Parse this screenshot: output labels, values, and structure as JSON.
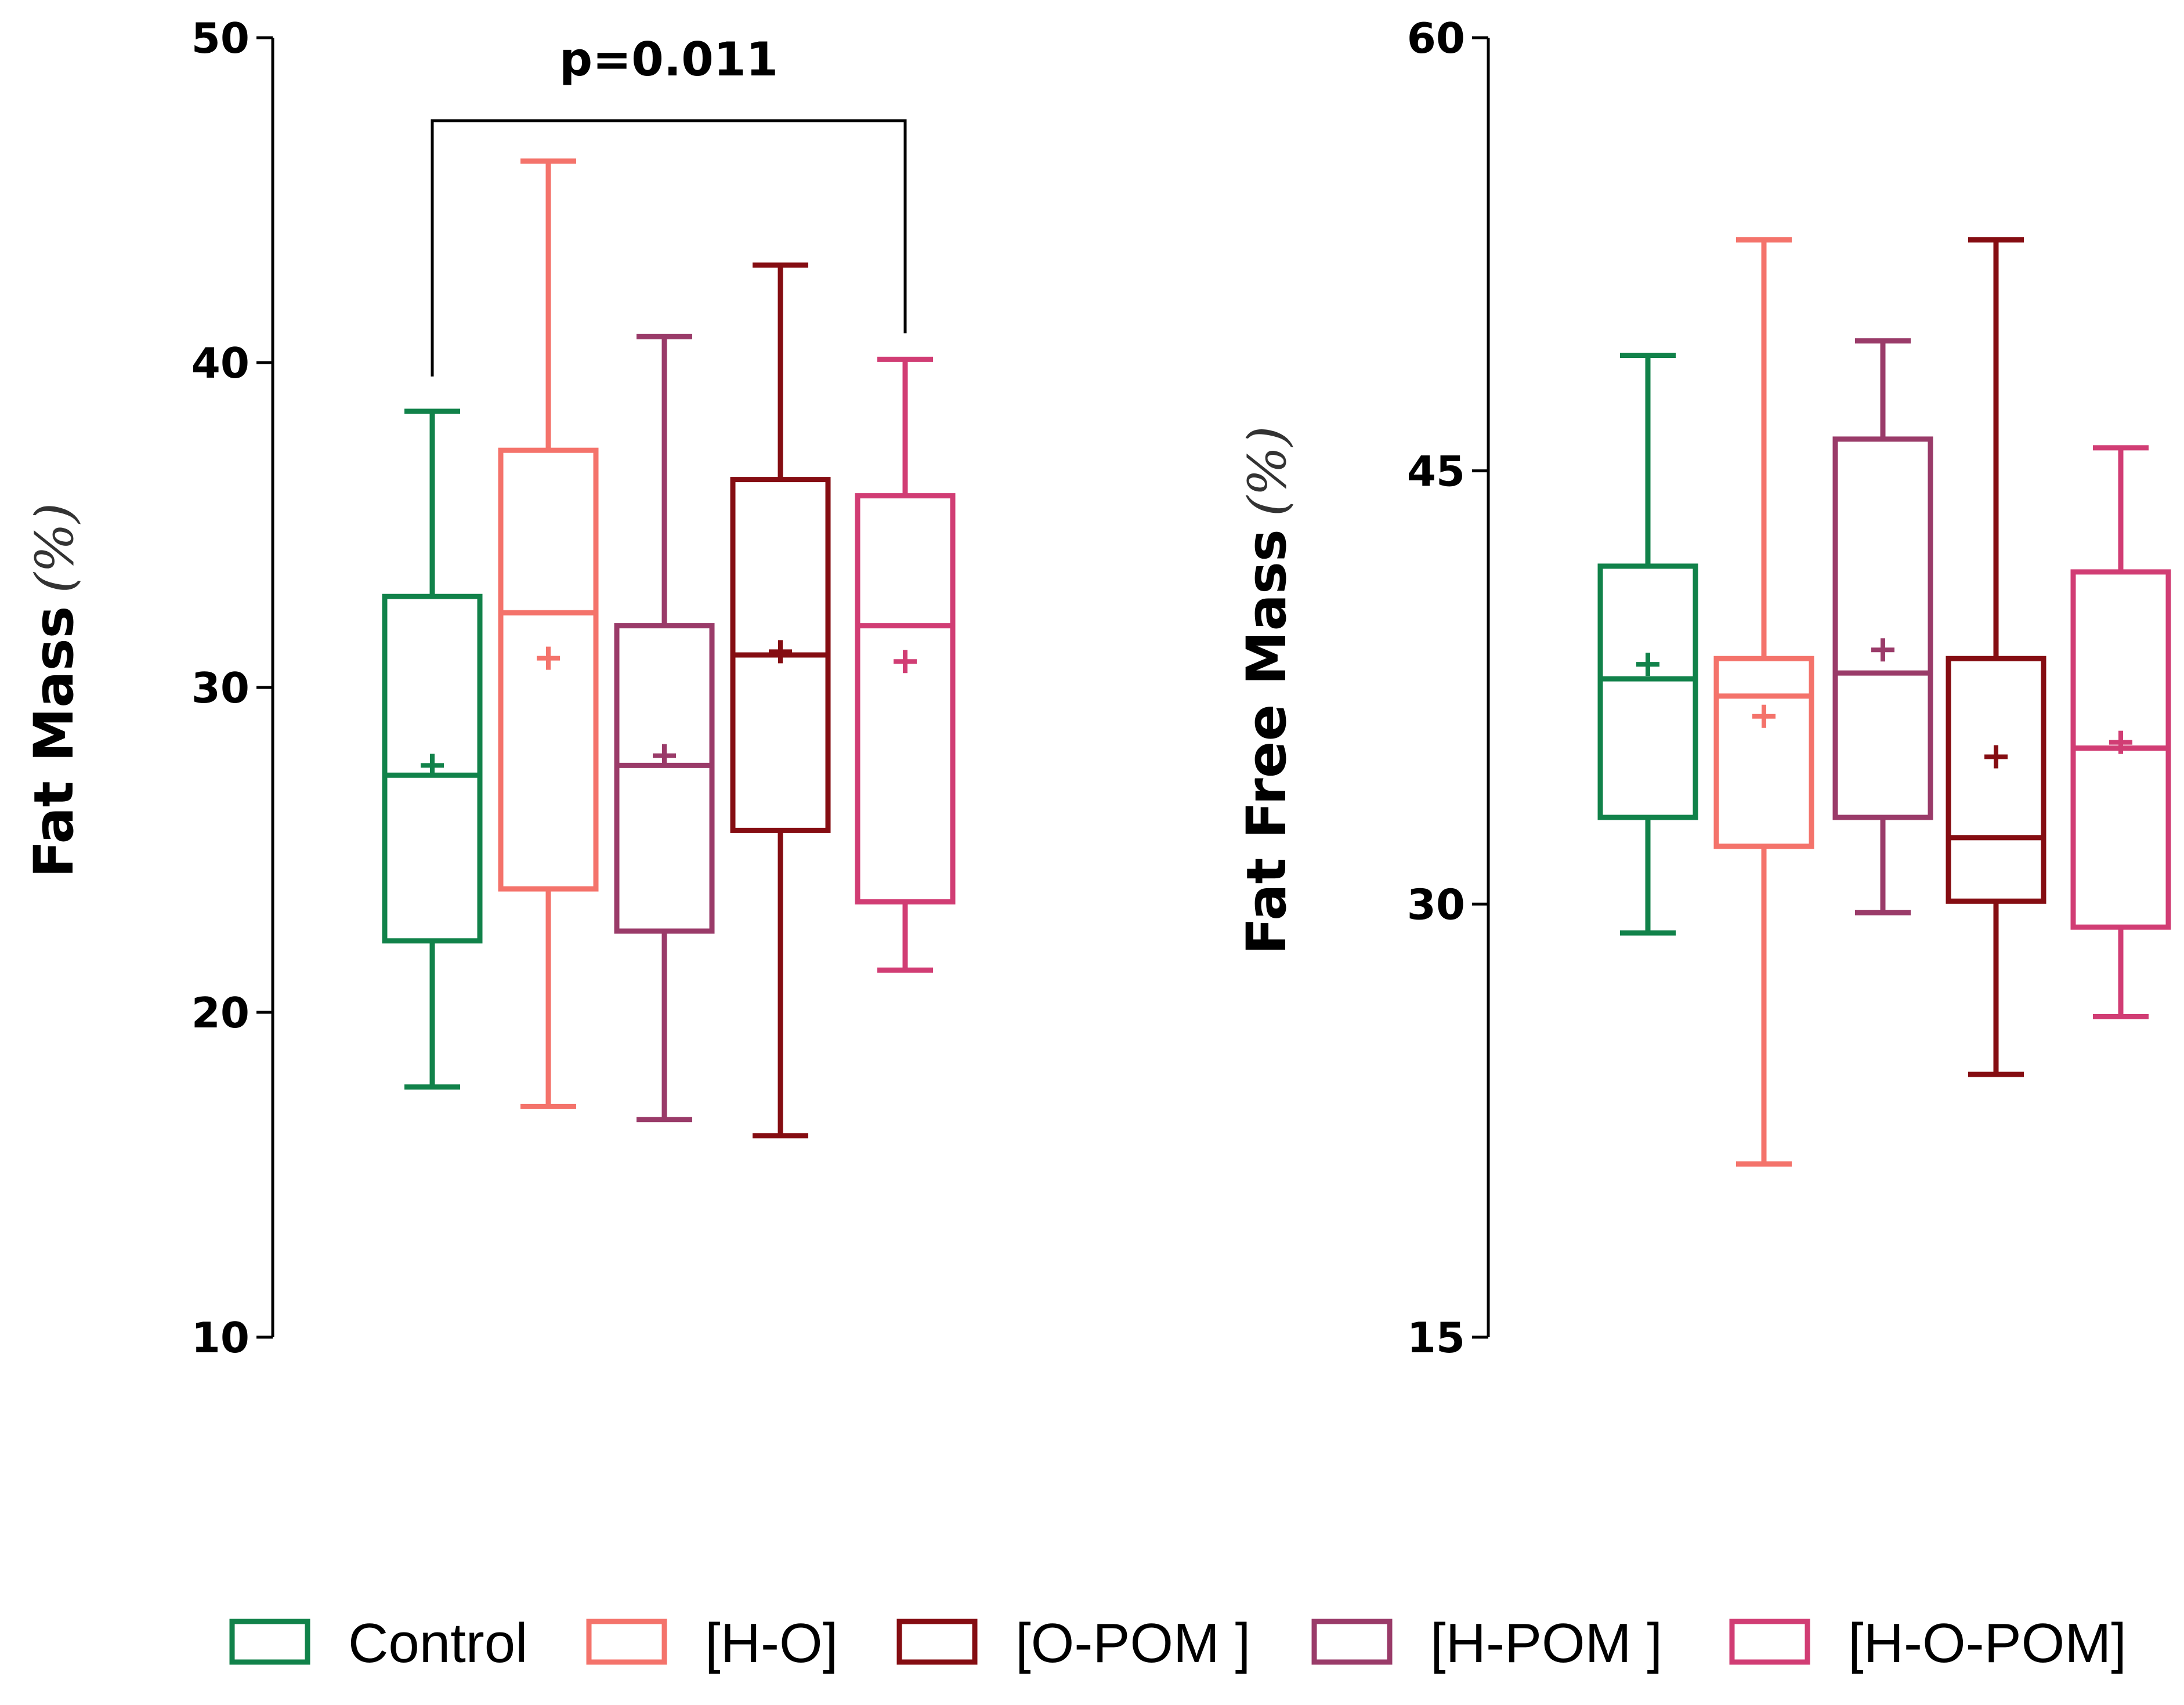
{
  "legend": [
    {
      "label": "Control",
      "color": "#11824a"
    },
    {
      "label": "[H-O]",
      "color": "#f4736b"
    },
    {
      "label": "[O-POM ]",
      "color": "#850d12"
    },
    {
      "label": "[H-POM ]",
      "color": "#9a3b69"
    },
    {
      "label": "[H-O-POM]",
      "color": "#d13d74"
    }
  ],
  "chart_data": [
    {
      "type": "box",
      "title": "",
      "ylabel": "Fat Mass",
      "yunit": "(%)",
      "ylim": [
        10,
        50
      ],
      "yticks": [
        10,
        20,
        30,
        40,
        50
      ],
      "ytick_labels": [
        "10",
        "20",
        "30",
        "40",
        "50"
      ],
      "groups": [
        {
          "name": "Control",
          "color": "#11824a",
          "min": 17.7,
          "q1": 22.2,
          "median": 27.3,
          "q3": 32.8,
          "max": 38.5,
          "mean": 27.6
        },
        {
          "name": "[H-O]",
          "color": "#f4736b",
          "min": 17.1,
          "q1": 23.8,
          "median": 32.3,
          "q3": 37.3,
          "max": 46.2,
          "mean": 30.9
        },
        {
          "name": "[H-POM ]",
          "color": "#9a3b69",
          "min": 16.7,
          "q1": 22.5,
          "median": 27.6,
          "q3": 31.9,
          "max": 40.8,
          "mean": 27.9
        },
        {
          "name": "[O-POM ]",
          "color": "#850d12",
          "min": 16.2,
          "q1": 25.6,
          "median": 31.0,
          "q3": 36.4,
          "max": 43.0,
          "mean": 31.1
        },
        {
          "name": "[H-O-POM]",
          "color": "#d13d74",
          "min": 21.3,
          "q1": 23.4,
          "median": 31.9,
          "q3": 35.9,
          "max": 40.1,
          "mean": 30.8
        }
      ],
      "annotation": {
        "text": "p=0.011",
        "from_group": 0,
        "to_group": 4
      }
    },
    {
      "type": "box",
      "title": "",
      "ylabel": "Fat Free Mass",
      "yunit": "(%)",
      "ylim": [
        15,
        60
      ],
      "yticks": [
        15,
        30,
        45,
        60
      ],
      "ytick_labels": [
        "15",
        "30",
        "45",
        "60"
      ],
      "groups": [
        {
          "name": "Control",
          "color": "#11824a",
          "min": 29.0,
          "q1": 33.0,
          "median": 37.8,
          "q3": 41.7,
          "max": 49.0,
          "mean": 38.3
        },
        {
          "name": "[H-O]",
          "color": "#f4736b",
          "min": 21.0,
          "q1": 32.0,
          "median": 37.2,
          "q3": 38.5,
          "max": 53.0,
          "mean": 36.5
        },
        {
          "name": "[H-POM ]",
          "color": "#9a3b69",
          "min": 29.7,
          "q1": 33.0,
          "median": 38.0,
          "q3": 46.1,
          "max": 49.5,
          "mean": 38.8
        },
        {
          "name": "[O-POM ]",
          "color": "#850d12",
          "min": 24.1,
          "q1": 30.1,
          "median": 32.3,
          "q3": 38.5,
          "max": 53.0,
          "mean": 35.1
        },
        {
          "name": "[H-O-POM]",
          "color": "#d13d74",
          "min": 26.1,
          "q1": 29.2,
          "median": 35.4,
          "q3": 41.5,
          "max": 45.8,
          "mean": 35.6
        }
      ]
    }
  ]
}
